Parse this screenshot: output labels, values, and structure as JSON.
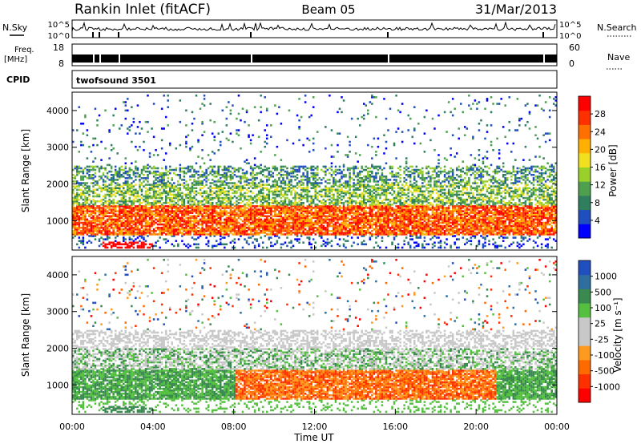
{
  "header": {
    "title": "Rankin Inlet (fitACF)",
    "beam": "Beam 05",
    "date": "31/Mar/2013"
  },
  "top_panels": {
    "nsky_label": "N.Sky",
    "nsky_ticks": [
      "10^5",
      "10^0"
    ],
    "nsearch_label": "N.Search",
    "nsearch_ticks": [
      "10^5",
      "10^0"
    ],
    "freq_label": "Freq.",
    "freq_unit": "[MHz]",
    "freq_ticks": [
      "18",
      "8"
    ],
    "nave_label": "Nave",
    "nave_ticks": [
      "60",
      "0"
    ],
    "cpid_label": "CPID",
    "cpid_value": "twofsound 3501"
  },
  "chart_data": [
    {
      "type": "heatmap",
      "name": "power",
      "ylabel": "Slant Range [km]",
      "ylim": [
        200,
        4500
      ],
      "yticks": [
        "4000",
        "3000",
        "2000",
        "1000"
      ],
      "xlim_hours": [
        0,
        24
      ],
      "colorbar": {
        "label": "Power [dB]",
        "ticks": [
          "28",
          "24",
          "20",
          "16",
          "12",
          "8",
          "4"
        ],
        "colors": [
          "#0000ff",
          "#1f4fbf",
          "#2f7f5f",
          "#4ea04e",
          "#9ad02a",
          "#f0e020",
          "#ffb000",
          "#ff7000",
          "#ff3000",
          "#ff0000"
        ]
      },
      "bands": [
        {
          "range": [
            600,
            1400
          ],
          "level": "high"
        },
        {
          "range": [
            1400,
            2000
          ],
          "level": "medium"
        },
        {
          "range": [
            2000,
            2500
          ],
          "level": "low"
        }
      ]
    },
    {
      "type": "heatmap",
      "name": "velocity",
      "ylabel": "Slant Range [km]",
      "ylim": [
        200,
        4500
      ],
      "yticks": [
        "4000",
        "3000",
        "2000",
        "1000"
      ],
      "xlim_hours": [
        0,
        24
      ],
      "colorbar": {
        "label": "Velocity [m s⁻¹]",
        "ticks": [
          "1000",
          "500",
          "100",
          "25",
          "-25",
          "-100",
          "-500",
          "-1000"
        ],
        "colors": [
          "#ff0000",
          "#ff3000",
          "#ff6a00",
          "#ff9a20",
          "#c8c8c8",
          "#c8c8c8",
          "#55c040",
          "#3a8a50",
          "#2f6f9f",
          "#2050c0"
        ]
      }
    }
  ],
  "time_axis": {
    "label": "Time UT",
    "ticks": [
      "00:00",
      "04:00",
      "08:00",
      "12:00",
      "16:00",
      "20:00",
      "00:00"
    ]
  }
}
